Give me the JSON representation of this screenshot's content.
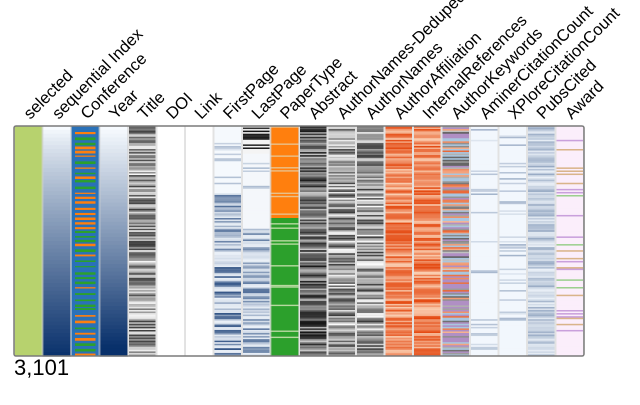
{
  "chart_data": {
    "type": "heatmap",
    "columns": [
      {
        "name": "selected",
        "palette": "green"
      },
      {
        "name": "sequential Index",
        "palette": "blue-seq"
      },
      {
        "name": "Conference",
        "palette": "conference"
      },
      {
        "name": "Year",
        "palette": "blue-year"
      },
      {
        "name": "Title",
        "palette": "gray"
      },
      {
        "name": "DOI",
        "palette": "blank"
      },
      {
        "name": "Link",
        "palette": "blank"
      },
      {
        "name": "FirstPage",
        "palette": "blue-sparse"
      },
      {
        "name": "LastPage",
        "palette": "blue-dark-top"
      },
      {
        "name": "PaperType",
        "palette": "papertype"
      },
      {
        "name": "Abstract",
        "palette": "gray-dark"
      },
      {
        "name": "AuthorNames-Deduped",
        "palette": "gray"
      },
      {
        "name": "AuthorNames",
        "palette": "gray"
      },
      {
        "name": "AuthorAffiliation",
        "palette": "orange"
      },
      {
        "name": "InternalReferences",
        "palette": "orange"
      },
      {
        "name": "AuthorKeywords",
        "palette": "mixed"
      },
      {
        "name": "AminerCitationCount",
        "palette": "pale-blue"
      },
      {
        "name": "XPloreCitationCount",
        "palette": "pale-blue"
      },
      {
        "name": "PubsCited",
        "palette": "light-blue"
      },
      {
        "name": "Award",
        "palette": "pink"
      }
    ],
    "row_count_label": "3,101",
    "colors": {
      "selected": "#b7d26e",
      "conference_a": "#2a71b8",
      "conference_b": "#ff7f0e",
      "conference_c": "#2ca02c",
      "papertype_a": "#ff7f0e",
      "papertype_b": "#2ca02c",
      "border": "#7a7a7a"
    }
  }
}
